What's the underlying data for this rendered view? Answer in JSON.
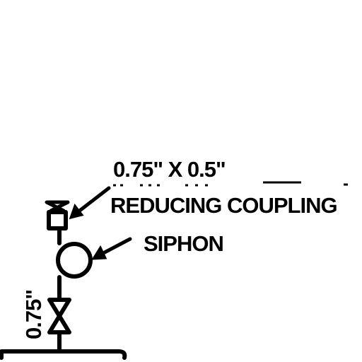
{
  "diagram": {
    "type": "piping-instrument-detail",
    "labels": {
      "coupling_size": "0.75\" X 0.5\"",
      "coupling_name": "REDUCING COUPLING",
      "siphon": "SIPHON",
      "pipe_size": "0.75\""
    }
  },
  "colors": {
    "ink": "#000000",
    "background": "#ffffff"
  }
}
